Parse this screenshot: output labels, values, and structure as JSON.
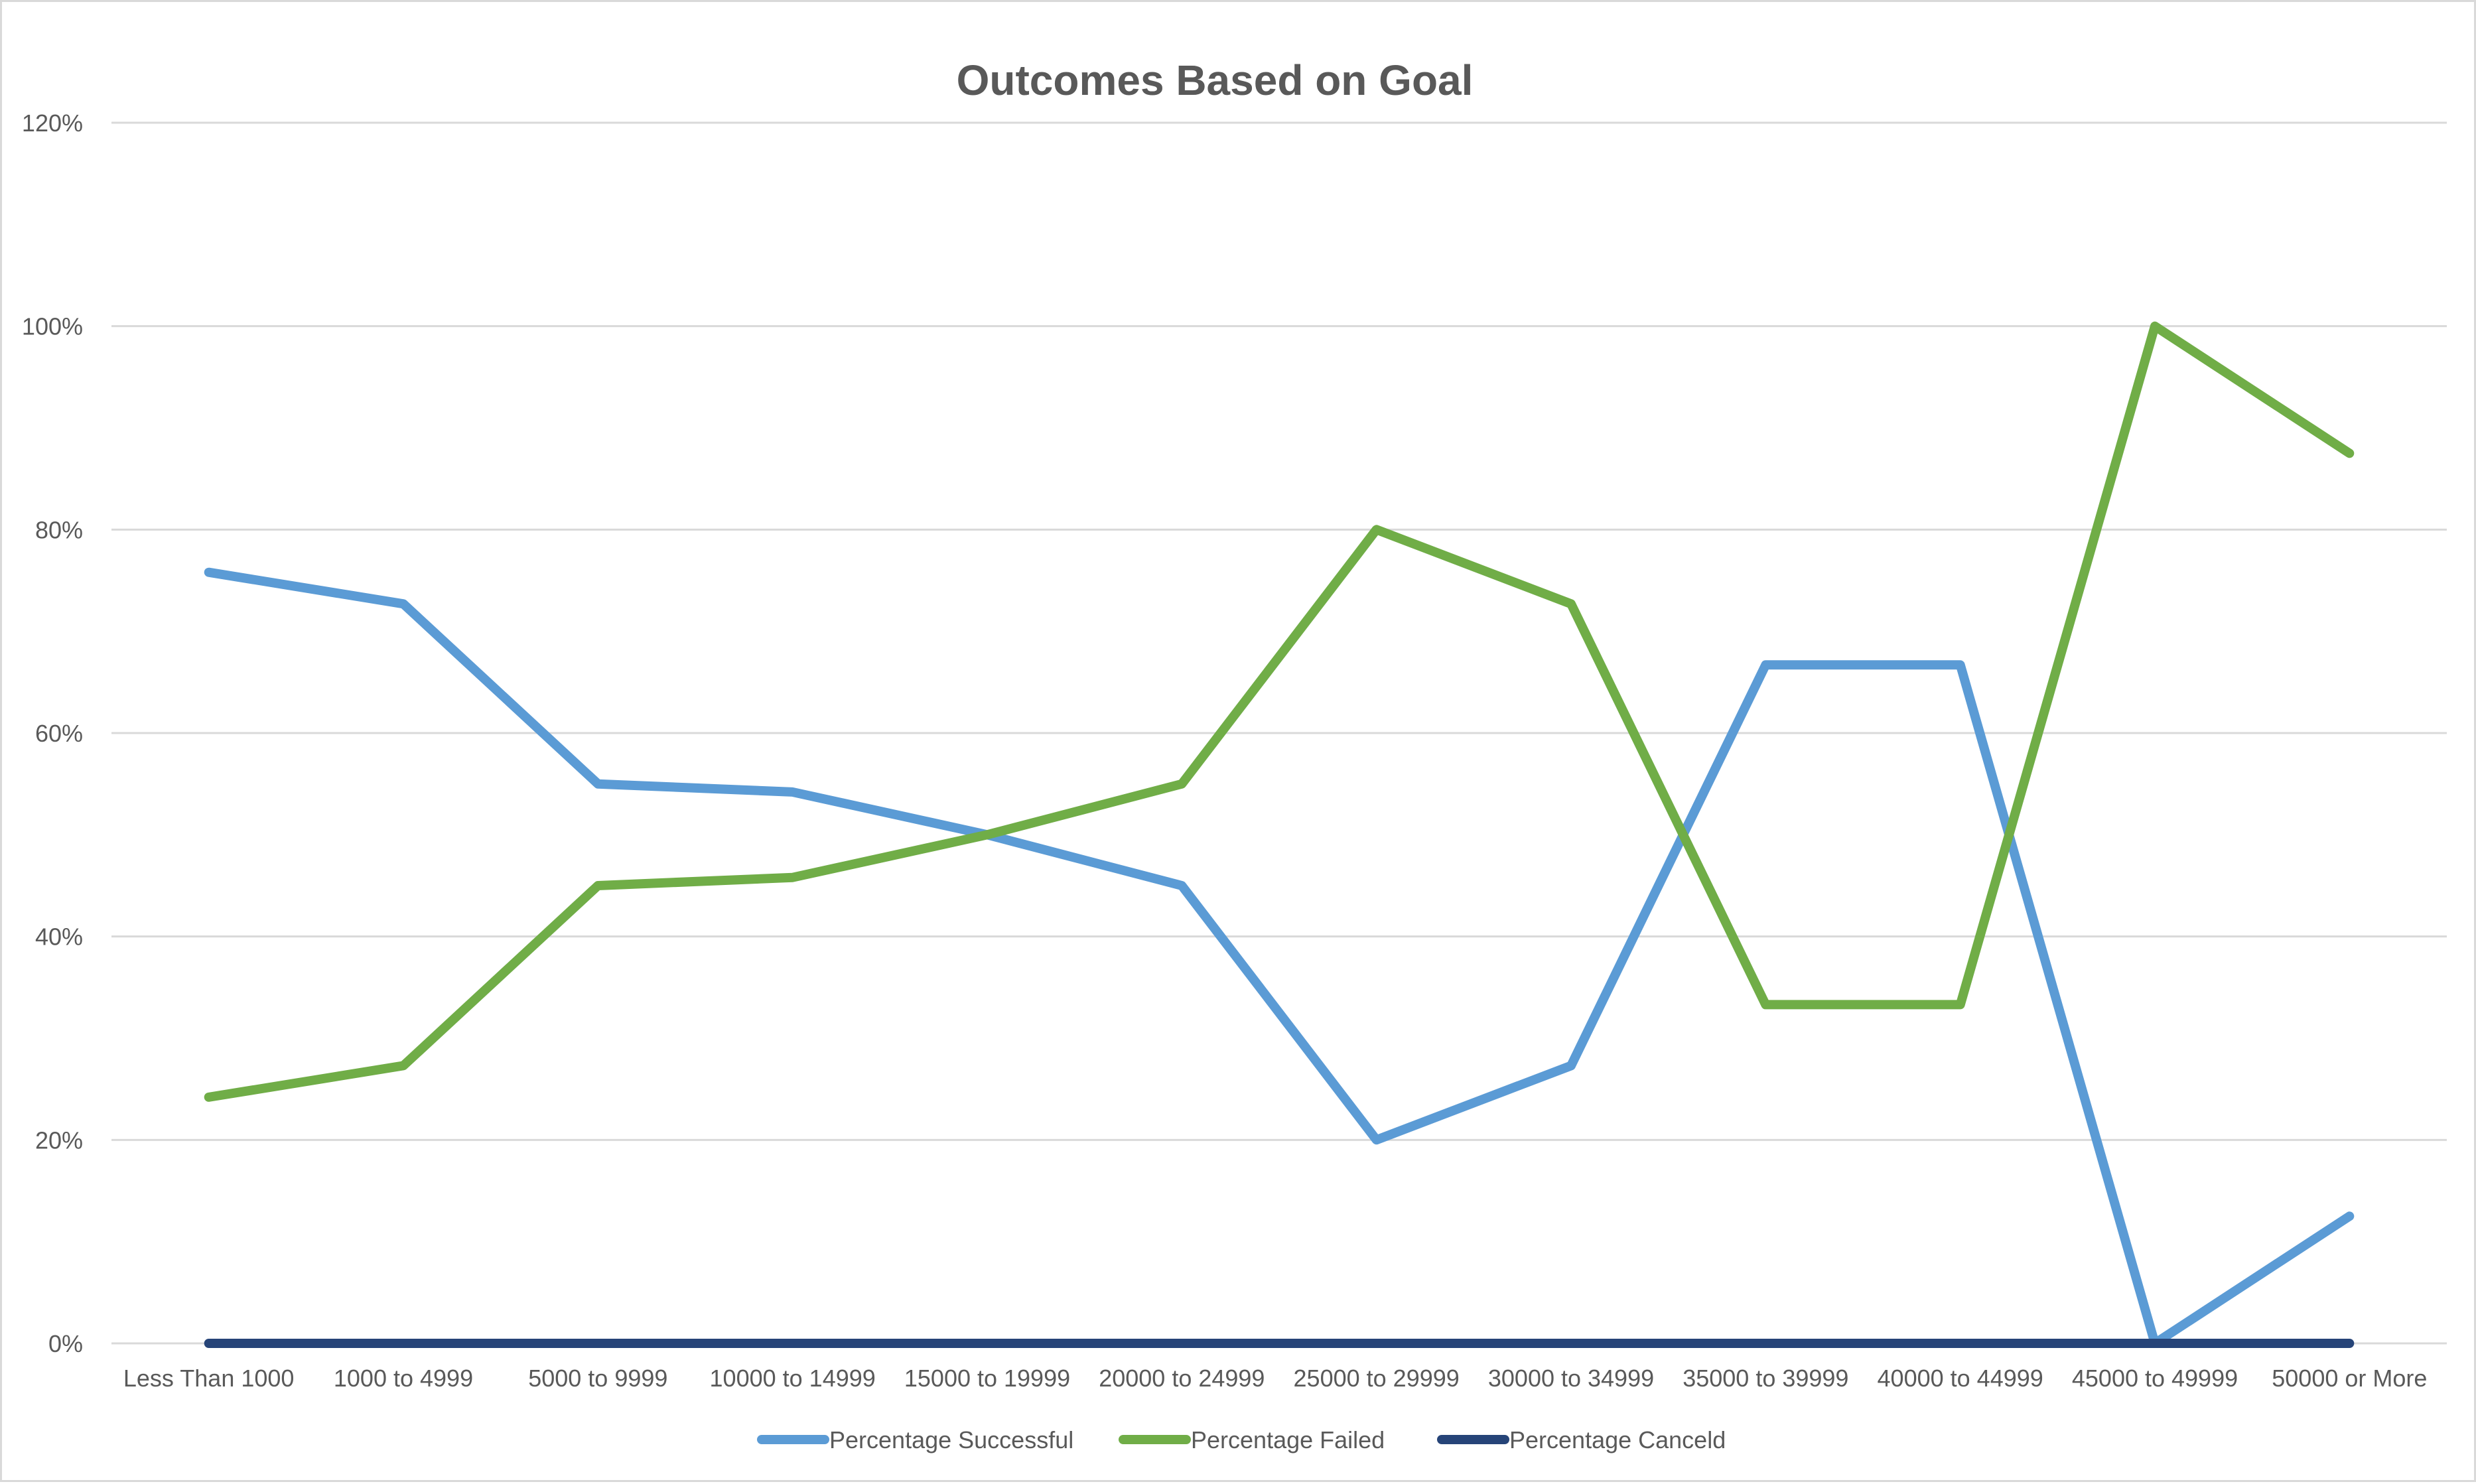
{
  "chart_data": {
    "type": "line",
    "title": "Outcomes Based on Goal",
    "xlabel": "",
    "ylabel": "",
    "categories": [
      "Less Than 1000",
      "1000 to 4999",
      "5000 to 9999",
      "10000 to 14999",
      "15000 to 19999",
      "20000 to 24999",
      "25000 to 29999",
      "30000 to 34999",
      "35000 to 39999",
      "40000 to 44999",
      "45000 to 49999",
      "50000 or More"
    ],
    "series": [
      {
        "name": "Percentage Successful",
        "color": "#5B9BD5",
        "values": [
          0.758,
          0.727,
          0.55,
          0.542,
          0.5,
          0.45,
          0.2,
          0.273,
          0.667,
          0.667,
          0.0,
          0.125
        ]
      },
      {
        "name": "Percentage Failed",
        "color": "#70AD47",
        "values": [
          0.242,
          0.273,
          0.45,
          0.458,
          0.5,
          0.55,
          0.8,
          0.727,
          0.333,
          0.333,
          1.0,
          0.875
        ]
      },
      {
        "name": "Percentage Canceld",
        "color": "#264478",
        "values": [
          0,
          0,
          0,
          0,
          0,
          0,
          0,
          0,
          0,
          0,
          0,
          0
        ]
      }
    ],
    "ylim": [
      0,
      1.2
    ],
    "y_ticks": [
      0,
      0.2,
      0.4,
      0.6,
      0.8,
      1.0,
      1.2
    ],
    "y_tick_labels": [
      "0%",
      "20%",
      "40%",
      "60%",
      "80%",
      "100%",
      "120%"
    ],
    "grid": true,
    "legend_position": "bottom"
  }
}
